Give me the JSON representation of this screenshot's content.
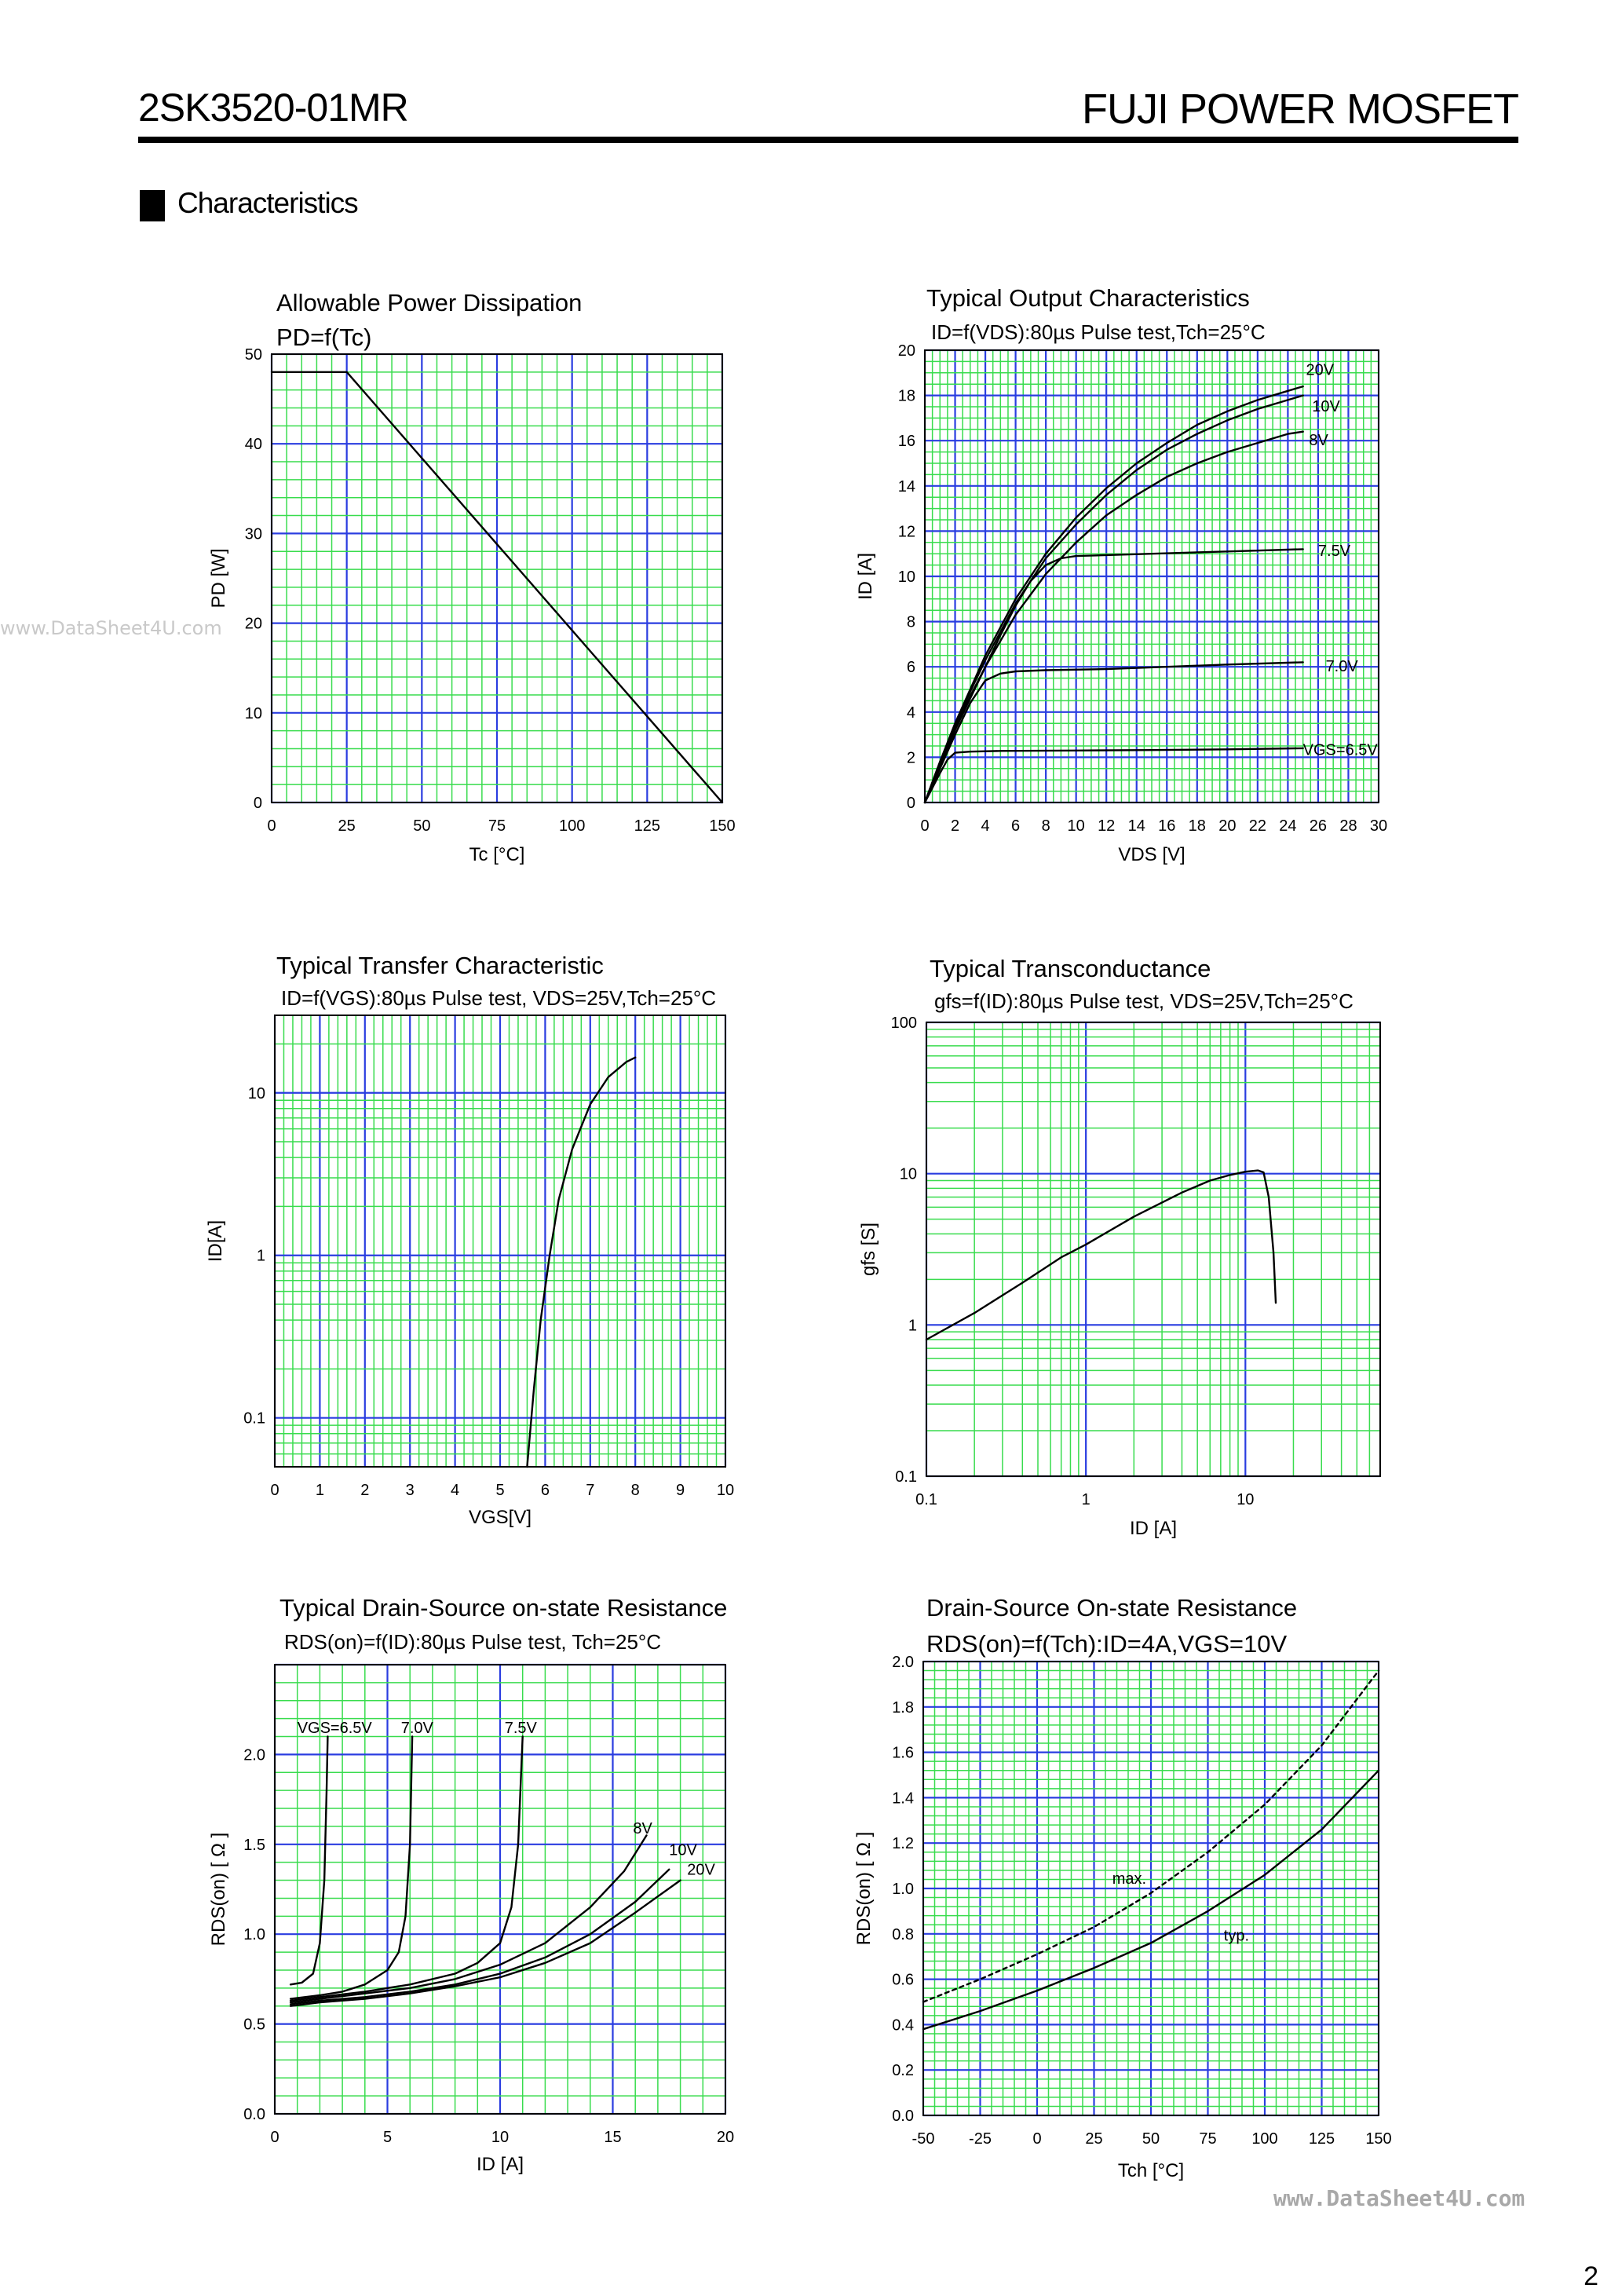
{
  "header": {
    "part_number": "2SK3520-01MR",
    "product_line": "FUJI POWER MOSFET"
  },
  "section": {
    "title": "Characteristics"
  },
  "watermarks": {
    "left": "www.DataSheet4U.com",
    "bottom": "www.DataSheet4U.com"
  },
  "page_number": "2",
  "chart_data": [
    {
      "id": "pd",
      "type": "line",
      "title": "Allowable Power Dissipation",
      "subtitle": "PD=f(Tc)",
      "xlabel": "Tc [°C]",
      "ylabel": "PD [W]",
      "xlim": [
        0,
        150
      ],
      "ylim": [
        0,
        50
      ],
      "xscale": "linear",
      "yscale": "linear",
      "xticks": [
        0,
        25,
        50,
        75,
        100,
        125,
        150
      ],
      "yticks": [
        0,
        10,
        20,
        30,
        40,
        50
      ],
      "series": [
        {
          "name": "PD",
          "x": [
            0,
            25,
            150
          ],
          "y": [
            48,
            48,
            0
          ]
        }
      ]
    },
    {
      "id": "output",
      "type": "line",
      "title": "Typical Output Characteristics",
      "subtitle": "ID=f(VDS):80µs Pulse test,Tch=25°C",
      "xlabel": "VDS [V]",
      "ylabel": "ID [A]",
      "xlim": [
        0,
        30
      ],
      "ylim": [
        0,
        20
      ],
      "xscale": "linear",
      "yscale": "linear",
      "xticks": [
        0,
        2,
        4,
        6,
        8,
        10,
        12,
        14,
        16,
        18,
        20,
        22,
        24,
        26,
        28,
        30
      ],
      "yticks": [
        0,
        2,
        4,
        6,
        8,
        10,
        12,
        14,
        16,
        18,
        20
      ],
      "series": [
        {
          "name": "20V",
          "x": [
            0,
            1,
            2,
            3,
            4,
            6,
            8,
            10,
            12,
            14,
            16,
            18,
            20,
            22,
            24,
            25
          ],
          "y": [
            0,
            1.8,
            3.5,
            5,
            6.5,
            9,
            11,
            12.6,
            13.9,
            15,
            15.9,
            16.7,
            17.3,
            17.8,
            18.2,
            18.4
          ]
        },
        {
          "name": "10V",
          "x": [
            0,
            1,
            2,
            3,
            4,
            6,
            8,
            10,
            12,
            14,
            16,
            18,
            20,
            22,
            24,
            25
          ],
          "y": [
            0,
            1.8,
            3.4,
            4.9,
            6.3,
            8.8,
            10.8,
            12.3,
            13.6,
            14.7,
            15.6,
            16.3,
            16.9,
            17.4,
            17.8,
            18
          ]
        },
        {
          "name": "8V",
          "x": [
            0,
            1,
            2,
            3,
            4,
            6,
            8,
            10,
            12,
            14,
            16,
            18,
            20,
            22,
            24,
            25
          ],
          "y": [
            0,
            1.7,
            3.3,
            4.7,
            6,
            8.3,
            10.1,
            11.5,
            12.7,
            13.6,
            14.4,
            15,
            15.5,
            15.9,
            16.3,
            16.4
          ]
        },
        {
          "name": "7.5V",
          "x": [
            0,
            1,
            2,
            3,
            4,
            5,
            6,
            7,
            8,
            9,
            10,
            15,
            20,
            25
          ],
          "y": [
            0,
            1.6,
            3.2,
            4.6,
            6,
            7.4,
            8.7,
            9.8,
            10.5,
            10.8,
            10.9,
            11,
            11.1,
            11.2
          ]
        },
        {
          "name": "7.0V",
          "x": [
            0,
            1,
            2,
            3,
            4,
            5,
            6,
            8,
            12,
            16,
            20,
            25
          ],
          "y": [
            0,
            1.5,
            3.0,
            4.4,
            5.4,
            5.7,
            5.8,
            5.85,
            5.9,
            6.0,
            6.1,
            6.2
          ]
        },
        {
          "name": "VGS=6.5V",
          "x": [
            0,
            1,
            1.5,
            2,
            3,
            5,
            10,
            15,
            20,
            25
          ],
          "y": [
            0,
            1.3,
            1.9,
            2.2,
            2.25,
            2.28,
            2.3,
            2.32,
            2.35,
            2.4
          ]
        }
      ],
      "series_labels": [
        "20V",
        "10V",
        "8V",
        "7.5V",
        "7.0V",
        "VGS=6.5V"
      ]
    },
    {
      "id": "transfer",
      "type": "line",
      "title": "Typical Transfer Characteristic",
      "subtitle": "ID=f(VGS):80µs Pulse test, VDS=25V,Tch=25°C",
      "xlabel": "VGS[V]",
      "ylabel": "ID[A]",
      "xlim": [
        0,
        10
      ],
      "ylim": [
        0.05,
        30
      ],
      "xscale": "linear",
      "yscale": "log",
      "xticks": [
        0,
        1,
        2,
        3,
        4,
        5,
        6,
        7,
        8,
        9,
        10
      ],
      "yticks": [
        0.1,
        1,
        10
      ],
      "series": [
        {
          "name": "ID",
          "x": [
            5.6,
            5.75,
            5.9,
            6.1,
            6.3,
            6.6,
            7.0,
            7.4,
            7.8,
            8.0
          ],
          "y": [
            0.05,
            0.15,
            0.4,
            1.0,
            2.2,
            4.5,
            8.5,
            12.5,
            15.5,
            16.5
          ]
        }
      ]
    },
    {
      "id": "gfs",
      "type": "line",
      "title": "Typical Transconductance",
      "subtitle": "gfs=f(ID):80µs Pulse test, VDS=25V,Tch=25°C",
      "xlabel": "ID [A]",
      "ylabel": "gfs [S]",
      "xlim": [
        0.1,
        70
      ],
      "ylim": [
        0.1,
        100
      ],
      "xscale": "log",
      "yscale": "log",
      "xticks": [
        0.1,
        1,
        10
      ],
      "yticks": [
        0.1,
        1,
        10,
        100
      ],
      "series": [
        {
          "name": "gfs",
          "x": [
            0.1,
            0.2,
            0.4,
            0.7,
            1,
            2,
            4,
            6,
            8,
            10,
            12,
            13,
            14,
            15,
            15.5
          ],
          "y": [
            0.8,
            1.2,
            1.9,
            2.8,
            3.4,
            5.2,
            7.5,
            9,
            9.8,
            10.3,
            10.5,
            10.2,
            7,
            3,
            1.4
          ]
        }
      ]
    },
    {
      "id": "rds_id",
      "type": "line",
      "title": "Typical Drain-Source on-state Resistance",
      "subtitle": "RDS(on)=f(ID):80µs Pulse test, Tch=25°C",
      "xlabel": "ID [A]",
      "ylabel": "RDS(on) [ Ω ]",
      "xlim": [
        0,
        20
      ],
      "ylim": [
        0,
        2.5
      ],
      "xscale": "linear",
      "yscale": "linear",
      "xticks": [
        0,
        5,
        10,
        15,
        20
      ],
      "yticks": [
        0.0,
        0.5,
        1.0,
        1.5,
        2.0
      ],
      "series": [
        {
          "name": "VGS=6.5V",
          "x": [
            0.7,
            1.2,
            1.7,
            2.0,
            2.2,
            2.3,
            2.35
          ],
          "y": [
            0.72,
            0.73,
            0.78,
            0.95,
            1.3,
            1.8,
            2.1
          ]
        },
        {
          "name": "7.0V",
          "x": [
            0.7,
            2,
            3,
            4,
            5,
            5.5,
            5.8,
            6.0,
            6.1
          ],
          "y": [
            0.64,
            0.66,
            0.68,
            0.72,
            0.8,
            0.9,
            1.1,
            1.5,
            2.1
          ]
        },
        {
          "name": "7.5V",
          "x": [
            0.7,
            2,
            4,
            6,
            8,
            9,
            10,
            10.5,
            10.8,
            11.0
          ],
          "y": [
            0.63,
            0.65,
            0.68,
            0.72,
            0.78,
            0.84,
            0.95,
            1.15,
            1.5,
            2.1
          ]
        },
        {
          "name": "8V",
          "x": [
            0.7,
            2,
            4,
            6,
            8,
            10,
            12,
            14,
            15.5,
            16.5
          ],
          "y": [
            0.62,
            0.64,
            0.67,
            0.7,
            0.75,
            0.83,
            0.95,
            1.15,
            1.35,
            1.55
          ]
        },
        {
          "name": "10V",
          "x": [
            0.7,
            2,
            4,
            6,
            8,
            10,
            12,
            14,
            16,
            17.5
          ],
          "y": [
            0.61,
            0.63,
            0.65,
            0.68,
            0.72,
            0.78,
            0.87,
            1.0,
            1.18,
            1.36
          ]
        },
        {
          "name": "20V",
          "x": [
            0.7,
            2,
            4,
            6,
            8,
            10,
            12,
            14,
            16,
            18
          ],
          "y": [
            0.6,
            0.62,
            0.64,
            0.67,
            0.71,
            0.76,
            0.84,
            0.95,
            1.12,
            1.3
          ]
        }
      ],
      "series_labels": [
        "VGS=6.5V",
        "7.0V",
        "7.5V",
        "8V",
        "10V",
        "20V"
      ]
    },
    {
      "id": "rds_tch",
      "type": "line",
      "title": "Drain-Source On-state Resistance",
      "subtitle": "RDS(on)=f(Tch):ID=4A,VGS=10V",
      "xlabel": "Tch [°C]",
      "ylabel": "RDS(on) [ Ω ]",
      "xlim": [
        -50,
        150
      ],
      "ylim": [
        0,
        2.0
      ],
      "xscale": "linear",
      "yscale": "linear",
      "xticks": [
        -50,
        -25,
        0,
        25,
        50,
        75,
        100,
        125,
        150
      ],
      "yticks": [
        0.0,
        0.2,
        0.4,
        0.6,
        0.8,
        1.0,
        1.2,
        1.4,
        1.6,
        1.8,
        2.0
      ],
      "series": [
        {
          "name": "max.",
          "style": "dashed",
          "x": [
            -50,
            -25,
            0,
            25,
            50,
            75,
            100,
            125,
            150
          ],
          "y": [
            0.5,
            0.6,
            0.71,
            0.83,
            0.98,
            1.16,
            1.37,
            1.63,
            1.96
          ]
        },
        {
          "name": "typ.",
          "style": "solid",
          "x": [
            -50,
            -25,
            0,
            25,
            50,
            75,
            100,
            125,
            150
          ],
          "y": [
            0.38,
            0.46,
            0.55,
            0.65,
            0.76,
            0.9,
            1.06,
            1.26,
            1.52
          ]
        }
      ],
      "series_labels": [
        "max.",
        "typ."
      ]
    }
  ]
}
